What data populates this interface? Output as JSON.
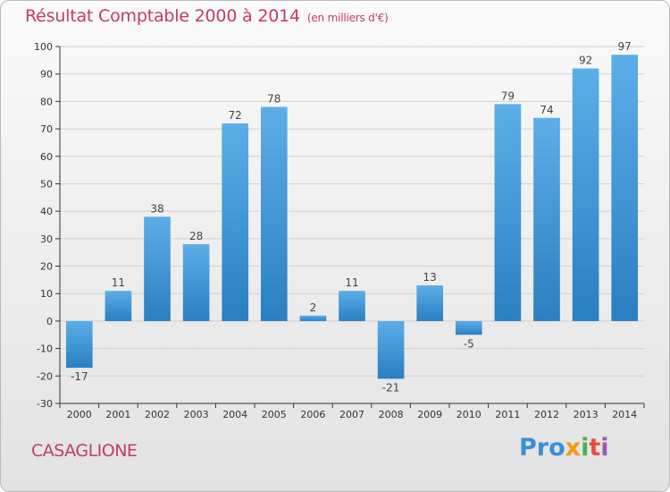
{
  "title": "Résultat Comptable 2000 à 2014",
  "unit": "(en milliers d'€)",
  "commune": "CASAGLIONE",
  "logo": {
    "p1": "Pro",
    "p2": "x",
    "p3": "i",
    "p4": "t",
    "p5": "i"
  },
  "chart_data": {
    "type": "bar",
    "title": "Résultat Comptable 2000 à 2014",
    "subtitle": "(en milliers d'€)",
    "categories": [
      "2000",
      "2001",
      "2002",
      "2003",
      "2004",
      "2005",
      "2006",
      "2007",
      "2008",
      "2009",
      "2010",
      "2011",
      "2012",
      "2013",
      "2014"
    ],
    "values": [
      -17,
      11,
      38,
      28,
      72,
      78,
      2,
      11,
      -21,
      13,
      -5,
      79,
      74,
      92,
      97
    ],
    "ylim": [
      -30,
      100
    ],
    "yticks": [
      -30,
      -20,
      -10,
      0,
      10,
      20,
      30,
      40,
      50,
      60,
      70,
      80,
      90,
      100
    ],
    "grid": true,
    "xlabel": "",
    "ylabel": "",
    "colors": {
      "bar_light": "#5caee8",
      "bar_dark": "#2a7fc2",
      "grid": "#cfcfcf",
      "axis": "#333333"
    }
  }
}
